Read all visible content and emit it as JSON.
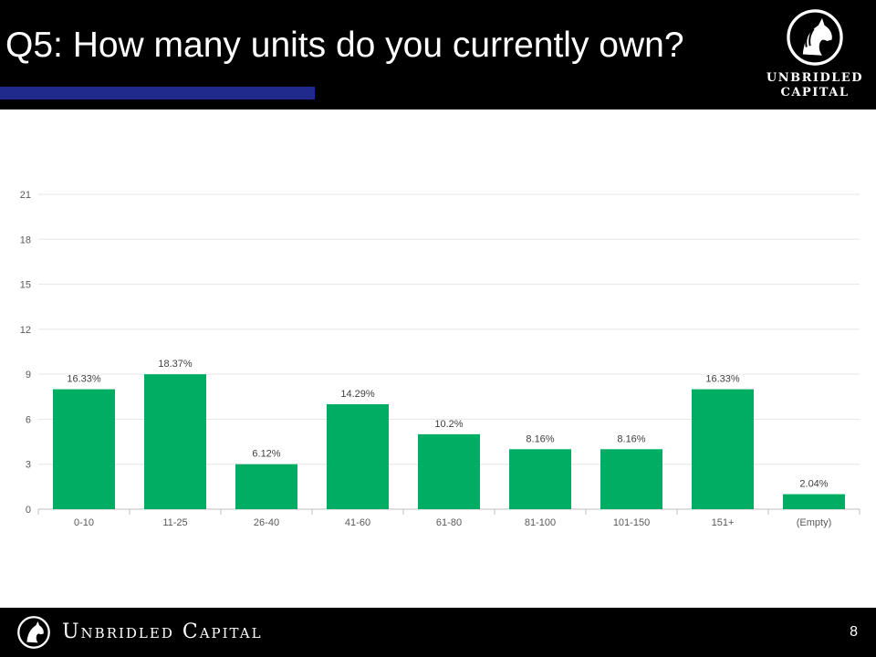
{
  "slide": {
    "title": "Q5: How many units do you currently own?",
    "page_number": "8"
  },
  "brand": {
    "logo_line1": "UNBRIDLED",
    "logo_line2": "CAPITAL",
    "footer_name": "Unbridled Capital",
    "accent_color": "#1f2a8c",
    "logo_icon": "horse-head-icon"
  },
  "chart_data": {
    "type": "bar",
    "categories": [
      "0-10",
      "11-25",
      "26-40",
      "41-60",
      "61-80",
      "81-100",
      "101-150",
      "151+",
      "(Empty)"
    ],
    "values": [
      8,
      9,
      3,
      7,
      5,
      4,
      4,
      8,
      1
    ],
    "data_labels": [
      "16.33%",
      "18.37%",
      "6.12%",
      "14.29%",
      "10.2%",
      "8.16%",
      "8.16%",
      "16.33%",
      "2.04%"
    ],
    "y_ticks": [
      0,
      3,
      6,
      9,
      12,
      15,
      18,
      21
    ],
    "ylim": [
      0,
      21
    ],
    "grid": true,
    "bar_color": "#00ad63",
    "title": "",
    "xlabel": "",
    "ylabel": ""
  }
}
